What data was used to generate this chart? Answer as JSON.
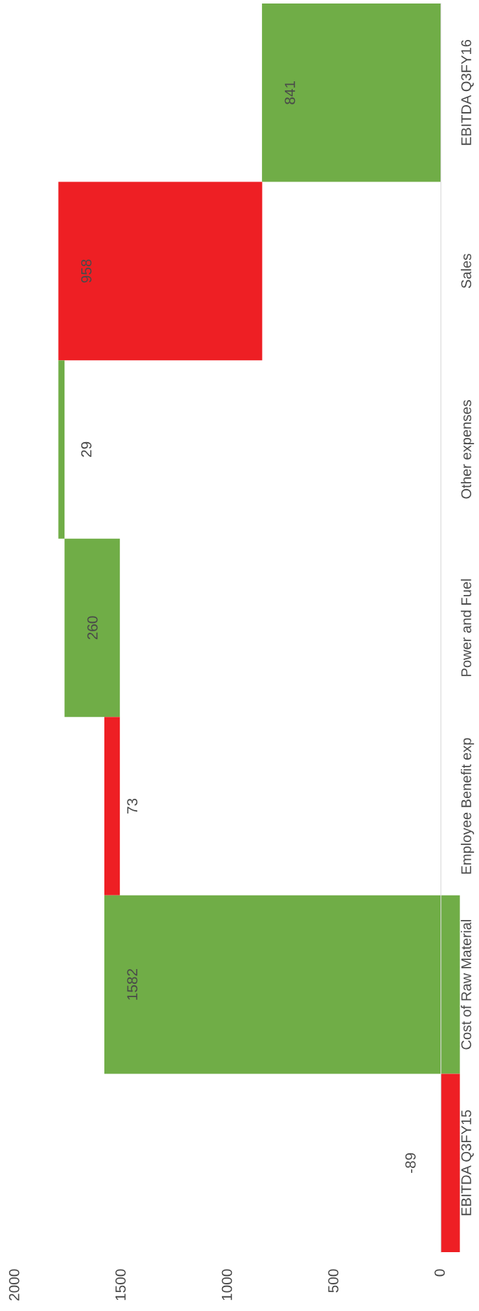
{
  "chart_data": {
    "type": "bar",
    "orientation": "horizontal",
    "categories": [
      "EBITDA Q3FY16",
      "Sales",
      "Other expenses",
      "Power and Fuel",
      "Employee Benefit exp",
      "Cost of Raw Material",
      "EBITDA Q3FY15"
    ],
    "values": [
      841,
      -958,
      29,
      260,
      -73,
      1671,
      -89
    ],
    "base": [
      0,
      1798,
      1769,
      1509,
      1582,
      -89,
      0
    ],
    "colors": [
      "#70ad47",
      "#ee1f24",
      "#70ad47",
      "#70ad47",
      "#ee1f24",
      "#70ad47",
      "#ee1f24"
    ],
    "value_labels": [
      "841",
      "958",
      "29",
      "260",
      "73",
      "1582",
      "-89"
    ],
    "xlim": [
      2000,
      -100
    ],
    "xticks": [
      0,
      500,
      1000,
      1500,
      2000
    ],
    "grid": false,
    "legend": false
  }
}
